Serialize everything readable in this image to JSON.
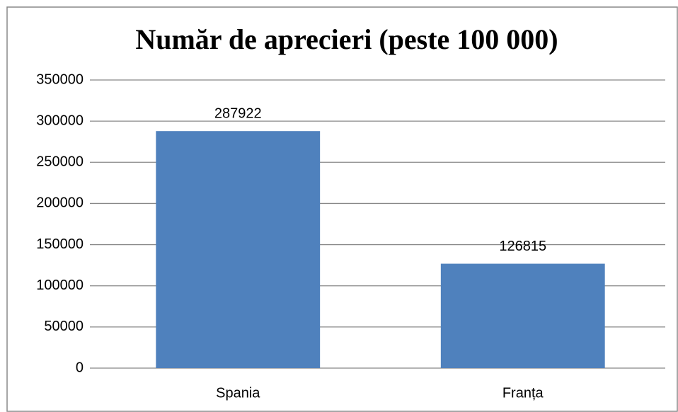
{
  "chart_data": {
    "type": "bar",
    "title": "Număr de aprecieri (peste 100 000)",
    "categories": [
      "Spania",
      "Franța"
    ],
    "values": [
      287922,
      126815
    ],
    "color": "#4f81bd",
    "ylim": [
      0,
      350000
    ],
    "yticks": [
      0,
      50000,
      100000,
      150000,
      200000,
      250000,
      300000,
      350000
    ],
    "grid": true
  }
}
